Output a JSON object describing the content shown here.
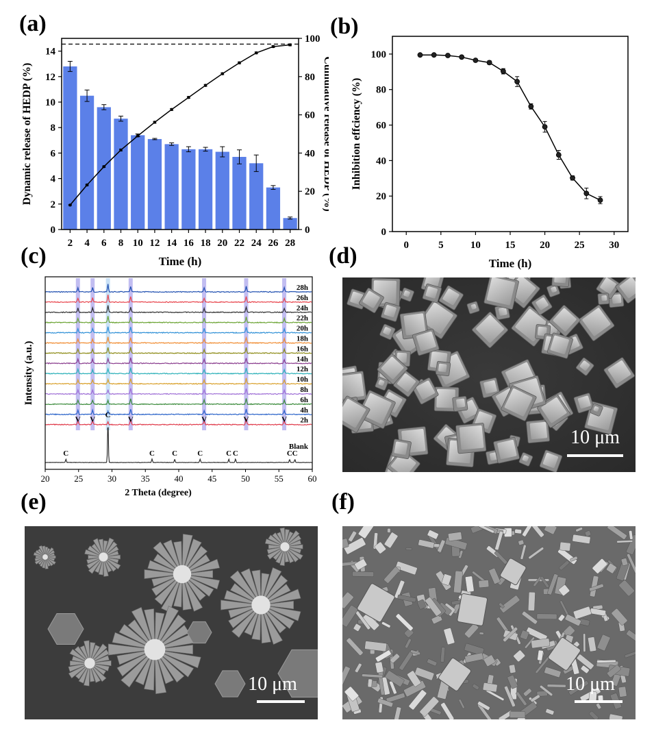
{
  "panels": {
    "a": "(a)",
    "b": "(b)",
    "c": "(c)",
    "d": "(d)",
    "e": "(e)",
    "f": "(f)"
  },
  "colors": {
    "bar": "#5b80e8",
    "line": "#000000",
    "highlight": "#8f86e6",
    "highlight_blank": "#9fc9ee"
  },
  "chart_data": [
    {
      "id": "a",
      "type": "bar",
      "xlabel": "Time (h)",
      "ylabel": "Dynamic release of HEDP (%)",
      "y2label": "Cumulative release of HEDP (%)",
      "categories": [
        2,
        4,
        6,
        8,
        10,
        12,
        14,
        16,
        18,
        20,
        22,
        24,
        26,
        28
      ],
      "xticks": [
        "2",
        "4",
        "6",
        "8",
        "10",
        "12",
        "14",
        "16",
        "18",
        "20",
        "22",
        "24",
        "26",
        "28"
      ],
      "ylim": [
        0,
        15
      ],
      "yticks": [
        0,
        2,
        4,
        6,
        8,
        10,
        12,
        14
      ],
      "y2lim": [
        0,
        100
      ],
      "y2ticks": [
        0,
        20,
        40,
        60,
        80,
        100
      ],
      "reference_line_y2": 97,
      "series": [
        {
          "axis": "left",
          "kind": "bar",
          "values": [
            12.8,
            10.5,
            9.6,
            8.7,
            7.4,
            7.1,
            6.7,
            6.3,
            6.3,
            6.1,
            5.7,
            5.2,
            3.3,
            0.9
          ],
          "errors": [
            0.4,
            0.45,
            0.2,
            0.2,
            0.1,
            0.05,
            0.1,
            0.2,
            0.15,
            0.4,
            0.55,
            0.65,
            0.15,
            0.08
          ]
        },
        {
          "axis": "right",
          "kind": "line",
          "values": [
            12.8,
            23.3,
            32.9,
            41.6,
            49.0,
            56.1,
            62.8,
            69.1,
            75.4,
            81.5,
            87.2,
            92.4,
            95.7,
            96.6
          ],
          "errors": [
            0.3,
            0.4,
            0.4,
            0.5,
            0.5,
            0.5,
            0.5,
            0.5,
            0.5,
            0.5,
            0.5,
            0.5,
            0.5,
            0.5
          ]
        }
      ]
    },
    {
      "id": "b",
      "type": "line",
      "xlabel": "Time (h)",
      "ylabel": "Inhibition effciency (%)",
      "xlim": [
        -2,
        32
      ],
      "xticks": [
        0,
        5,
        10,
        15,
        20,
        25,
        30
      ],
      "ylim": [
        0,
        110
      ],
      "yticks": [
        0,
        20,
        40,
        60,
        80,
        100
      ],
      "series": [
        {
          "x": [
            2,
            4,
            6,
            8,
            10,
            12,
            14,
            16,
            18,
            20,
            22,
            24,
            26,
            28
          ],
          "values": [
            99.5,
            99.5,
            99.2,
            98.3,
            96.5,
            95.2,
            90.3,
            84.5,
            70.5,
            59.0,
            43.2,
            30.2,
            21.5,
            17.7
          ],
          "errors": [
            0.3,
            0.3,
            0.3,
            0.5,
            0.6,
            1.0,
            1.5,
            2.8,
            1.5,
            3.0,
            2.5,
            1.2,
            3.0,
            2.0
          ]
        }
      ]
    },
    {
      "id": "c",
      "type": "line",
      "xlabel": "2 Theta (degree)",
      "ylabel": "Intensity (a.u.)",
      "xlim": [
        20,
        60
      ],
      "xticks": [
        20,
        25,
        30,
        35,
        40,
        45,
        50,
        55,
        60
      ],
      "highlight_bands": [
        24.9,
        27.1,
        29.4,
        32.8,
        43.8,
        50.1,
        55.8
      ],
      "blank_band": 29.4,
      "series": [
        {
          "name": "28h",
          "color": "#1f4fb0"
        },
        {
          "name": "26h",
          "color": "#e8454d"
        },
        {
          "name": "24h",
          "color": "#333333"
        },
        {
          "name": "22h",
          "color": "#6aa332"
        },
        {
          "name": "20h",
          "color": "#2d8fd6"
        },
        {
          "name": "18h",
          "color": "#f08a2e"
        },
        {
          "name": "16h",
          "color": "#8c8a14"
        },
        {
          "name": "14h",
          "color": "#8a3d8e"
        },
        {
          "name": "12h",
          "color": "#2bb0b8"
        },
        {
          "name": "10h",
          "color": "#d9a02a"
        },
        {
          "name": "8h",
          "color": "#9f6fd6"
        },
        {
          "name": "6h",
          "color": "#3a8a3a"
        },
        {
          "name": "4h",
          "color": "#2a63c9"
        },
        {
          "name": "2h",
          "color": "#e03a4a"
        },
        {
          "name": "Blank",
          "color": "#222222"
        }
      ],
      "vaterite_peaks": [
        24.9,
        27.1,
        32.8,
        43.8,
        50.1,
        55.8
      ],
      "vaterite_label": "V",
      "calcite_peaks": [
        23.1,
        29.4,
        36.0,
        39.4,
        43.2,
        47.5,
        48.5,
        56.6,
        57.4
      ],
      "calcite_label": "C"
    }
  ],
  "images": {
    "d": {
      "scale_label": "10 μm"
    },
    "e": {
      "scale_label": "10 μm"
    },
    "f": {
      "scale_label": "10 μm"
    }
  }
}
